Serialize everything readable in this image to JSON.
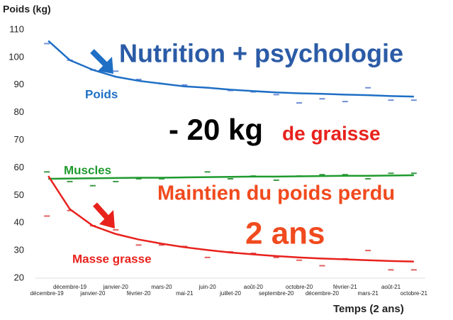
{
  "chart_data": {
    "type": "line",
    "y_label": "Poids (kg)",
    "x_label": "Temps (2 ans)",
    "annotations": {
      "headline": "Nutrition + psychologie",
      "loss": "- 20 kg",
      "loss_detail": "de graisse",
      "maintain": "Maintien du poids perdu",
      "duration": "2 ans"
    },
    "categories": [
      "décembre-19",
      "décembre-19",
      "janvier-20",
      "janvier-20",
      "février-20",
      "mars-20",
      "mai-21",
      "juin-20",
      "juillet-20",
      "août-20",
      "septembre-20",
      "octobre-20",
      "décembre-20",
      "février-21",
      "mars-21",
      "août-21",
      "octobre-21"
    ],
    "series": [
      {
        "name": "Poids",
        "color": "#1f6fc5",
        "marker_color": "#6f8fd6",
        "values": [
          105,
          99,
          95.5,
          95,
          92,
          90.5,
          90,
          89,
          88,
          87.5,
          86.5,
          83.5,
          85,
          84,
          89,
          84.5,
          84.5
        ],
        "trend": [
          106,
          99,
          95.5,
          93,
          91.5,
          90.5,
          89.5,
          89,
          88.3,
          87.8,
          87.3,
          87,
          86.8,
          86.5,
          86.3,
          86,
          85.8
        ]
      },
      {
        "name": "Muscles",
        "color": "#1e9a2e",
        "marker_color": "#3a9a46",
        "values": [
          58.5,
          55,
          53.5,
          55,
          56,
          56,
          56.5,
          58.5,
          56,
          57,
          55.5,
          57,
          57.5,
          57.5,
          56,
          58,
          58
        ],
        "trend": [
          56,
          56.1,
          56.2,
          56.3,
          56.4,
          56.4,
          56.5,
          56.6,
          56.7,
          56.8,
          56.8,
          56.9,
          57,
          57.1,
          57.1,
          57.2,
          57.3
        ]
      },
      {
        "name": "Masse grasse",
        "color": "#e8211c",
        "marker_color": "#e06060",
        "values": [
          42.5,
          44.5,
          39,
          37.5,
          32,
          32,
          31.5,
          27.5,
          29.5,
          29,
          27.5,
          26.5,
          24.5,
          27,
          30,
          23,
          23
        ],
        "trend": [
          57,
          45,
          39,
          36,
          34,
          32.5,
          31.2,
          30.2,
          29.3,
          28.6,
          28,
          27.5,
          27.1,
          26.8,
          26.5,
          26.2,
          26
        ]
      }
    ],
    "ylim": [
      20,
      110
    ],
    "yticks": [
      20,
      30,
      40,
      50,
      60,
      70,
      80,
      90,
      100,
      110
    ]
  }
}
